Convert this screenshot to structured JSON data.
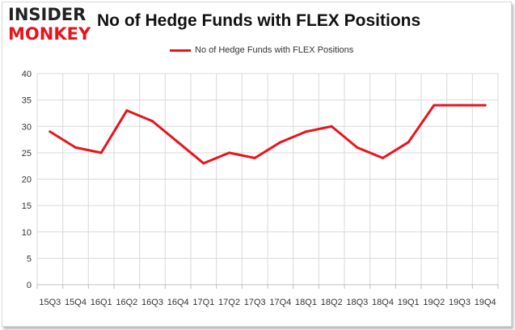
{
  "logo": {
    "line1": "INSIDER",
    "line2": "MONKEY"
  },
  "chart_data": {
    "type": "line",
    "title": "No of Hedge Funds with FLEX Positions",
    "xlabel": "",
    "ylabel": "",
    "categories": [
      "15Q3",
      "15Q4",
      "16Q1",
      "16Q2",
      "16Q3",
      "16Q4",
      "17Q1",
      "17Q2",
      "17Q3",
      "17Q4",
      "18Q1",
      "18Q2",
      "18Q3",
      "18Q4",
      "19Q1",
      "19Q2",
      "19Q3",
      "19Q4"
    ],
    "series": [
      {
        "name": "No of Hedge Funds with FLEX Positions",
        "values": [
          29,
          26,
          25,
          33,
          31,
          27,
          23,
          25,
          24,
          27,
          29,
          30,
          26,
          24,
          27,
          34,
          34,
          34
        ]
      }
    ],
    "ylim": [
      0,
      40
    ],
    "yticks": [
      0,
      5,
      10,
      15,
      20,
      25,
      30,
      35,
      40
    ],
    "grid": true,
    "legend_position": "top",
    "series_color": "#e8141c"
  }
}
